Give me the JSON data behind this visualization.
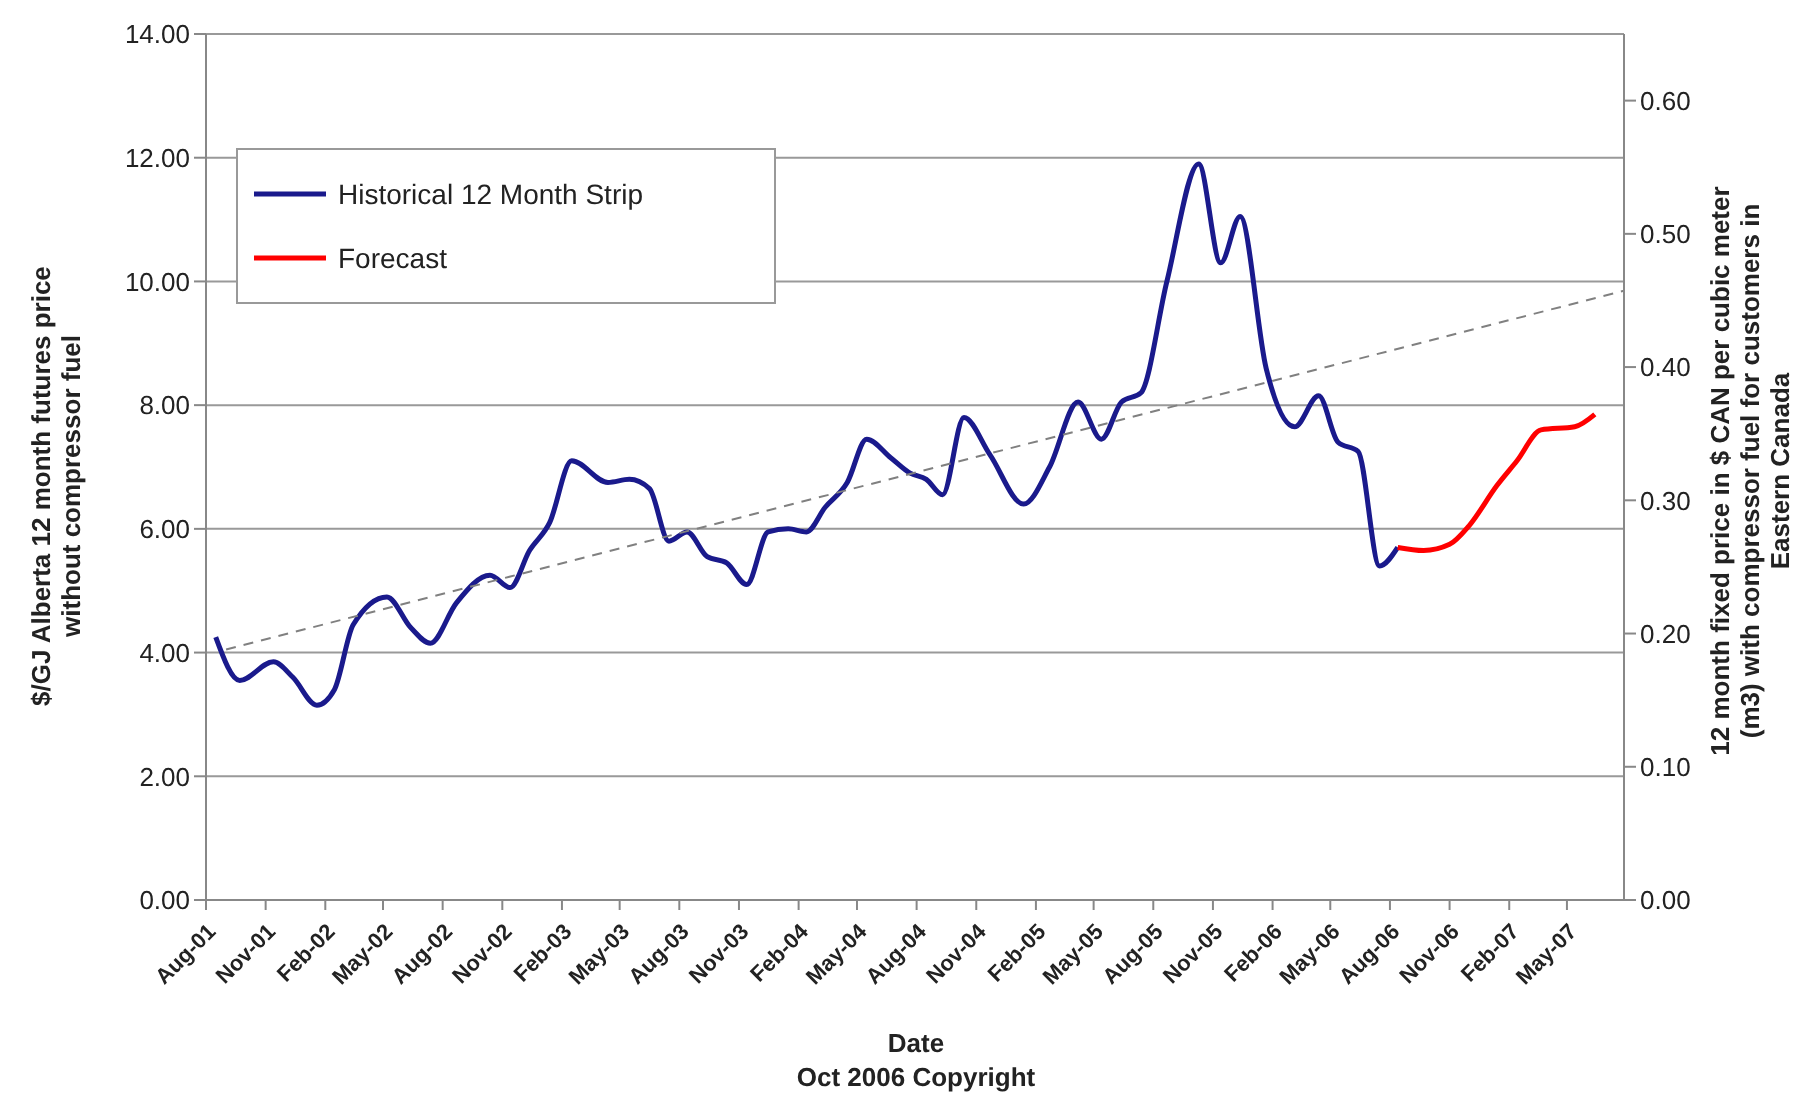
{
  "chart_data": {
    "type": "line",
    "xlabel": "Date",
    "ylabel": "$/GJ Alberta 12 month futures price without compressor fuel",
    "y2label": "12 month fixed price in $ CAN per cubic meter (m3) with compressor fuel for customers in Eastern Canada",
    "annotations": [
      "Oct 2006 Copyright"
    ],
    "xlim": [
      "2001-08-01",
      "2007-07-28"
    ],
    "xticks": [
      {
        "value": "2001-08",
        "label": "Aug-01"
      },
      {
        "value": "2001-11",
        "label": "Nov-01"
      },
      {
        "value": "2002-02",
        "label": "Feb-02"
      },
      {
        "value": "2002-05",
        "label": "May-02"
      },
      {
        "value": "2002-08",
        "label": "Aug-02"
      },
      {
        "value": "2002-11",
        "label": "Nov-02"
      },
      {
        "value": "2003-02",
        "label": "Feb-03"
      },
      {
        "value": "2003-05",
        "label": "May-03"
      },
      {
        "value": "2003-08",
        "label": "Aug-03"
      },
      {
        "value": "2003-11",
        "label": "Nov-03"
      },
      {
        "value": "2004-02",
        "label": "Feb-04"
      },
      {
        "value": "2004-05",
        "label": "May-04"
      },
      {
        "value": "2004-08",
        "label": "Aug-04"
      },
      {
        "value": "2004-11",
        "label": "Nov-04"
      },
      {
        "value": "2005-02",
        "label": "Feb-05"
      },
      {
        "value": "2005-05",
        "label": "May-05"
      },
      {
        "value": "2005-08",
        "label": "Aug-05"
      },
      {
        "value": "2005-11",
        "label": "Nov-05"
      },
      {
        "value": "2006-02",
        "label": "Feb-06"
      },
      {
        "value": "2006-05",
        "label": "May-06"
      },
      {
        "value": "2006-08",
        "label": "Aug-06"
      },
      {
        "value": "2006-11",
        "label": "Nov-06"
      },
      {
        "value": "2007-02",
        "label": "Feb-07"
      },
      {
        "value": "2007-05",
        "label": "May-07"
      }
    ],
    "ylim": [
      0,
      14
    ],
    "yticks": [
      {
        "value": 0,
        "label": "0.00"
      },
      {
        "value": 2,
        "label": "2.00"
      },
      {
        "value": 4,
        "label": "4.00"
      },
      {
        "value": 6,
        "label": "6.00"
      },
      {
        "value": 8,
        "label": "8.00"
      },
      {
        "value": 10,
        "label": "10.00"
      },
      {
        "value": 12,
        "label": "12.00"
      },
      {
        "value": 14,
        "label": "14.00"
      }
    ],
    "y2lim": [
      0,
      0.65
    ],
    "y2ticks": [
      {
        "value": 0,
        "label": "0.00"
      },
      {
        "value": 0.1,
        "label": "0.10"
      },
      {
        "value": 0.2,
        "label": "0.20"
      },
      {
        "value": 0.3,
        "label": "0.30"
      },
      {
        "value": 0.4,
        "label": "0.40"
      },
      {
        "value": 0.5,
        "label": "0.50"
      },
      {
        "value": 0.6,
        "label": "0.60"
      }
    ],
    "grid": "y",
    "legend": "top left",
    "marker": "none",
    "series": [
      {
        "name": "Historical 12 Month Strip",
        "color": "#1a1a8c",
        "line_style": "solid",
        "x": [
          "2001-08-16",
          "2001-09-22",
          "2001-11-13",
          "2001-12-13",
          "2002-01-19",
          "2002-02-15",
          "2002-03-16",
          "2002-05-07",
          "2002-06-13",
          "2002-07-13",
          "2002-08-22",
          "2002-10-13",
          "2002-11-13",
          "2002-12-13",
          "2003-01-13",
          "2003-02-16",
          "2003-04-13",
          "2003-05-16",
          "2003-06-16",
          "2003-07-16",
          "2003-08-13",
          "2003-09-13",
          "2003-10-13",
          "2003-11-13",
          "2003-12-16",
          "2004-01-16",
          "2004-02-13",
          "2004-03-13",
          "2004-04-16",
          "2004-05-16",
          "2004-06-22",
          "2004-07-22",
          "2004-08-16",
          "2004-09-10",
          "2004-10-13",
          "2004-11-22",
          "2005-01-13",
          "2005-02-22",
          "2005-04-07",
          "2005-05-13",
          "2005-06-13",
          "2005-07-13",
          "2005-08-22",
          "2005-10-10",
          "2005-11-13",
          "2005-12-13",
          "2006-01-22",
          "2006-03-07",
          "2006-04-13",
          "2006-05-13",
          "2006-06-13",
          "2006-07-16",
          "2006-08-13"
        ],
        "values": [
          4.25,
          3.55,
          3.85,
          3.6,
          3.15,
          3.4,
          4.45,
          4.9,
          4.4,
          4.15,
          4.8,
          5.25,
          5.05,
          5.65,
          6.1,
          7.1,
          6.75,
          6.8,
          6.65,
          5.8,
          5.95,
          5.55,
          5.45,
          5.1,
          5.95,
          6.0,
          5.95,
          6.35,
          6.75,
          7.45,
          7.15,
          6.9,
          6.8,
          6.55,
          7.8,
          7.2,
          6.4,
          7.0,
          8.05,
          7.45,
          8.05,
          8.2,
          10.0,
          11.9,
          10.3,
          11.05,
          8.6,
          7.65,
          8.15,
          7.4,
          7.25,
          5.4,
          5.7
        ]
      },
      {
        "name": "Forecast",
        "color": "#ff0000",
        "line_style": "solid",
        "x": [
          "2006-08-13",
          "2006-09-22",
          "2006-11-01",
          "2006-12-01",
          "2007-01-13",
          "2007-02-13",
          "2007-03-22",
          "2007-05-13",
          "2007-06-13"
        ],
        "values": [
          5.7,
          5.65,
          5.75,
          6.05,
          6.7,
          7.1,
          7.6,
          7.65,
          7.85
        ]
      },
      {
        "color": "#808080",
        "line_style": "dashed",
        "x": [
          "2001-09-01",
          "2007-07-28"
        ],
        "values": [
          4.05,
          9.85
        ]
      }
    ]
  }
}
